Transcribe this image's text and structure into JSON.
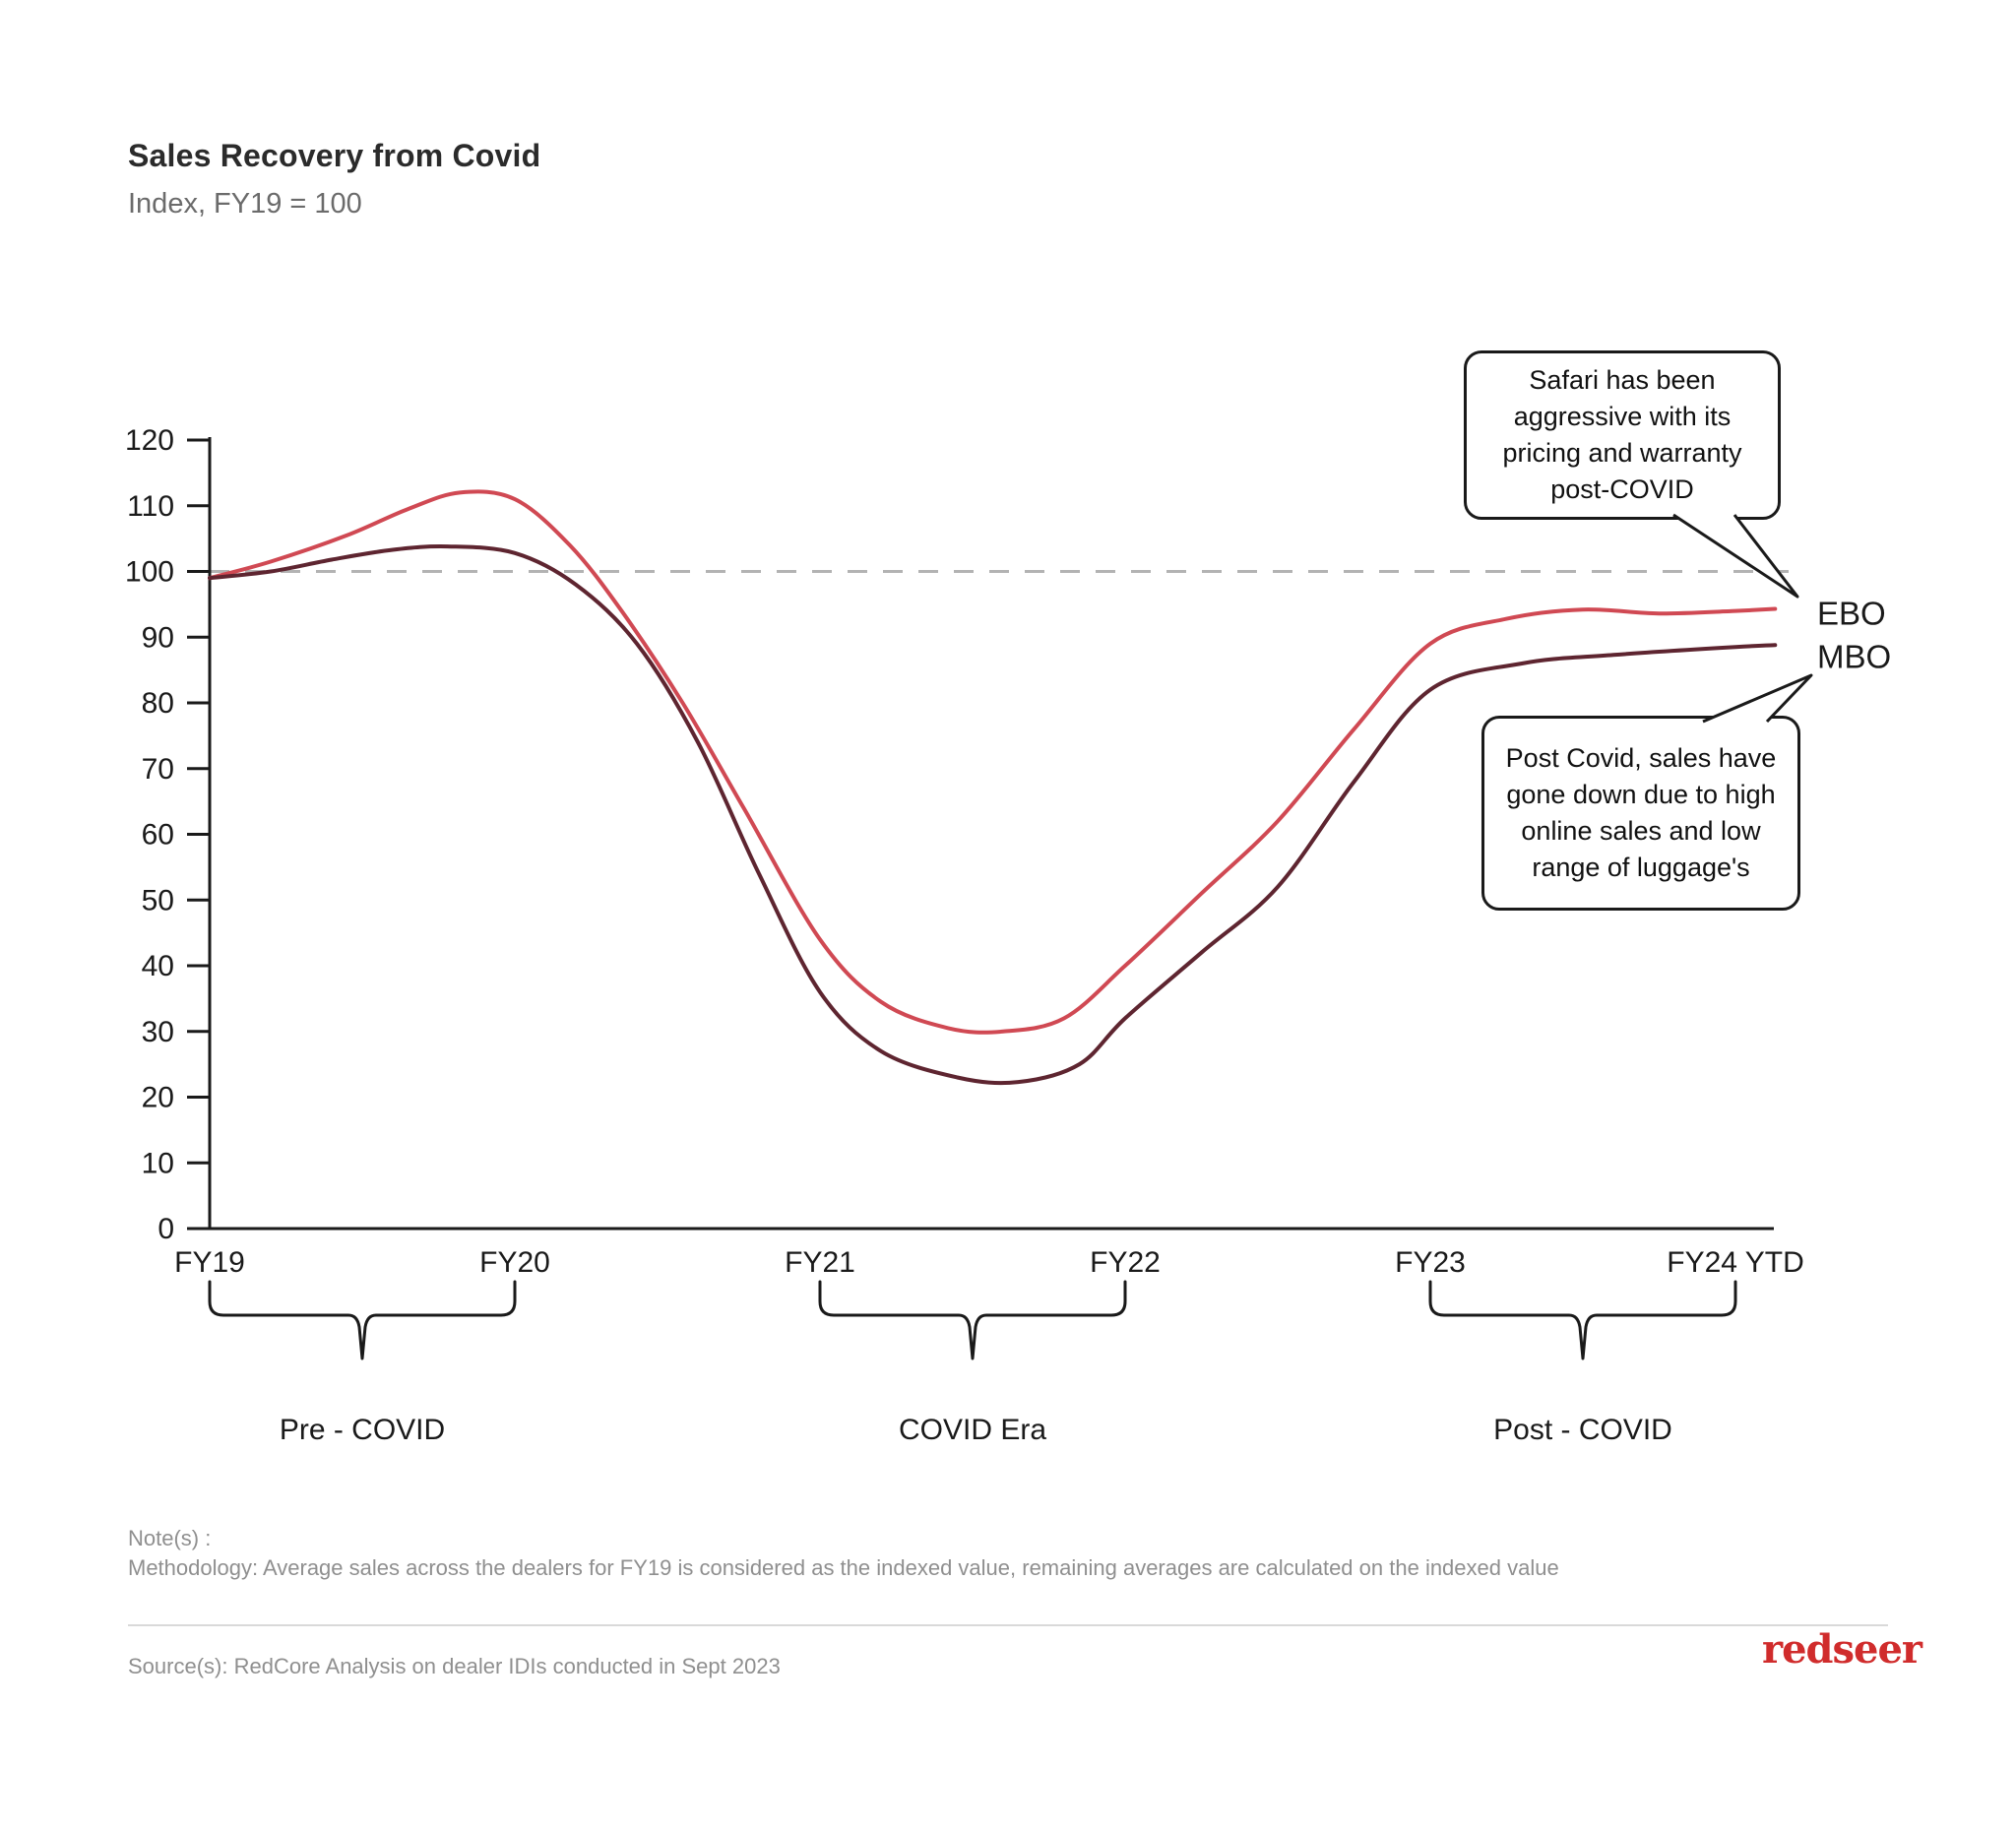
{
  "header": {
    "title": "Sales Recovery from Covid",
    "subtitle": "Index, FY19 = 100"
  },
  "chart_data": {
    "type": "line",
    "x_categories": [
      "FY19",
      "FY20",
      "FY21",
      "FY22",
      "FY23",
      "FY24 YTD"
    ],
    "y_ticks": [
      0,
      10,
      20,
      30,
      40,
      50,
      60,
      70,
      80,
      90,
      100,
      110,
      120
    ],
    "ylim": [
      0,
      120
    ],
    "grid": "off",
    "baseline": {
      "value": 100,
      "style": "dashed",
      "color": "#b3b3b3"
    },
    "series": [
      {
        "name": "EBO",
        "color": "#d04953",
        "points": [
          [
            0,
            99
          ],
          [
            0.2,
            101.5
          ],
          [
            0.45,
            105.5
          ],
          [
            0.65,
            109.5
          ],
          [
            0.82,
            112
          ],
          [
            1.0,
            111
          ],
          [
            1.18,
            104
          ],
          [
            1.35,
            94
          ],
          [
            1.55,
            80
          ],
          [
            1.75,
            64
          ],
          [
            2.0,
            44
          ],
          [
            2.2,
            34.5
          ],
          [
            2.42,
            30.5
          ],
          [
            2.6,
            30
          ],
          [
            2.8,
            32
          ],
          [
            3.0,
            40
          ],
          [
            3.25,
            51
          ],
          [
            3.5,
            62
          ],
          [
            3.75,
            76
          ],
          [
            4.0,
            89
          ],
          [
            4.25,
            92.8
          ],
          [
            4.5,
            94.2
          ],
          [
            4.75,
            93.6
          ],
          [
            5.0,
            94
          ],
          [
            5.13,
            94.3
          ]
        ]
      },
      {
        "name": "MBO",
        "color": "#5e2530",
        "points": [
          [
            0,
            99
          ],
          [
            0.2,
            100
          ],
          [
            0.4,
            101.8
          ],
          [
            0.6,
            103.3
          ],
          [
            0.78,
            103.8
          ],
          [
            1.0,
            102.8
          ],
          [
            1.2,
            98
          ],
          [
            1.4,
            89
          ],
          [
            1.6,
            74
          ],
          [
            1.8,
            54
          ],
          [
            2.0,
            36
          ],
          [
            2.2,
            27
          ],
          [
            2.45,
            23
          ],
          [
            2.65,
            22.3
          ],
          [
            2.85,
            25
          ],
          [
            3.0,
            32
          ],
          [
            3.25,
            42
          ],
          [
            3.5,
            52
          ],
          [
            3.75,
            68
          ],
          [
            4.0,
            82
          ],
          [
            4.3,
            86
          ],
          [
            4.6,
            87.3
          ],
          [
            5.0,
            88.5
          ],
          [
            5.13,
            88.8
          ]
        ]
      }
    ],
    "era_brackets": [
      {
        "label": "Pre - COVID",
        "from_index": 0,
        "to_index": 1
      },
      {
        "label": "COVID Era",
        "from_index": 2,
        "to_index": 3
      },
      {
        "label": "Post - COVID",
        "from_index": 4,
        "to_index": 5
      }
    ],
    "annotations": [
      {
        "id": "ebo-callout",
        "target": "EBO",
        "text": "Safari has been aggressive with its pricing and warranty post-COVID"
      },
      {
        "id": "mbo-callout",
        "target": "MBO",
        "text": "Post Covid, sales have gone down due to high online sales and low range of luggage's"
      }
    ]
  },
  "footer": {
    "notes_label": "Note(s) :",
    "methodology": "Methodology: Average sales across the dealers for FY19 is considered as the indexed value, remaining averages are calculated on the indexed value",
    "source": "Source(s): RedCore Analysis on dealer IDIs conducted in Sept 2023",
    "logo_text": "redseer"
  },
  "colors": {
    "axis": "#1a1a1a",
    "baseline_dash": "#b3b3b3",
    "ebo_line": "#d04953",
    "mbo_line": "#5e2530",
    "logo_red": "#d02c2c"
  }
}
